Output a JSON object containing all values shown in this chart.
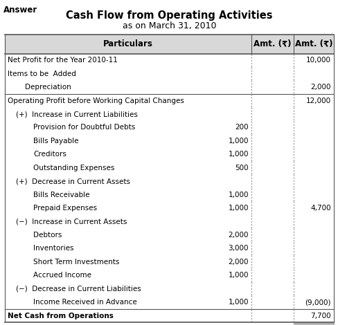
{
  "answer_label": "Answer",
  "title1": "Cash Flow from Operating Activities",
  "title2": "as on March 31, 2010",
  "header": [
    "Particulars",
    "Amt. (₹)",
    "Amt. (₹)"
  ],
  "rows": [
    {
      "text": "Net Profit for the Year 2010-11",
      "indent": 0,
      "col1": "",
      "col2": "10,000",
      "bold": false
    },
    {
      "text": "Items to be  Added",
      "indent": 0,
      "col1": "",
      "col2": "",
      "bold": false
    },
    {
      "text": "Depreciation",
      "indent": 2,
      "col1": "",
      "col2": "2,000",
      "bold": false
    },
    {
      "text": "Operating Profit before Working Capital Changes",
      "indent": 0,
      "col1": "",
      "col2": "12,000",
      "bold": false,
      "top_border": true
    },
    {
      "text": "(+)  Increase in Current Liabilities",
      "indent": 1,
      "col1": "",
      "col2": "",
      "bold": false
    },
    {
      "text": "Provision for Doubtful Debts",
      "indent": 3,
      "col1": "200",
      "col2": "",
      "bold": false
    },
    {
      "text": "Bills Payable",
      "indent": 3,
      "col1": "1,000",
      "col2": "",
      "bold": false
    },
    {
      "text": "Creditors",
      "indent": 3,
      "col1": "1,000",
      "col2": "",
      "bold": false
    },
    {
      "text": "Outstanding Expenses",
      "indent": 3,
      "col1": "500",
      "col2": "",
      "bold": false
    },
    {
      "text": "(+)  Decrease in Current Assets",
      "indent": 1,
      "col1": "",
      "col2": "",
      "bold": false
    },
    {
      "text": "Bills Receivable",
      "indent": 3,
      "col1": "1,000",
      "col2": "",
      "bold": false
    },
    {
      "text": "Prepaid Expenses",
      "indent": 3,
      "col1": "1,000",
      "col2": "4,700",
      "bold": false,
      "top_border_col2": true
    },
    {
      "text": "(−)  Increase in Current Assets",
      "indent": 1,
      "col1": "",
      "col2": "",
      "bold": false
    },
    {
      "text": "Debtors",
      "indent": 3,
      "col1": "2,000",
      "col2": "",
      "bold": false
    },
    {
      "text": "Inventories",
      "indent": 3,
      "col1": "3,000",
      "col2": "",
      "bold": false
    },
    {
      "text": "Short Term Investments",
      "indent": 3,
      "col1": "2,000",
      "col2": "",
      "bold": false
    },
    {
      "text": "Accrued Income",
      "indent": 3,
      "col1": "1,000",
      "col2": "",
      "bold": false
    },
    {
      "text": "(−)  Decrease in Current Liabilities",
      "indent": 1,
      "col1": "",
      "col2": "",
      "bold": false
    },
    {
      "text": "Income Received in Advance",
      "indent": 3,
      "col1": "1,000",
      "col2": "(9,000)",
      "bold": false
    },
    {
      "text": "Net Cash from Operations",
      "indent": 0,
      "col1": "",
      "col2": "7,700",
      "bold": true,
      "top_border": true,
      "double_bottom": true
    }
  ],
  "bg_color": "#ffffff",
  "line_color": "#555555",
  "text_color": "#000000",
  "font_size": 7.5,
  "header_font_size": 8.5,
  "title_font_size": 10.5
}
